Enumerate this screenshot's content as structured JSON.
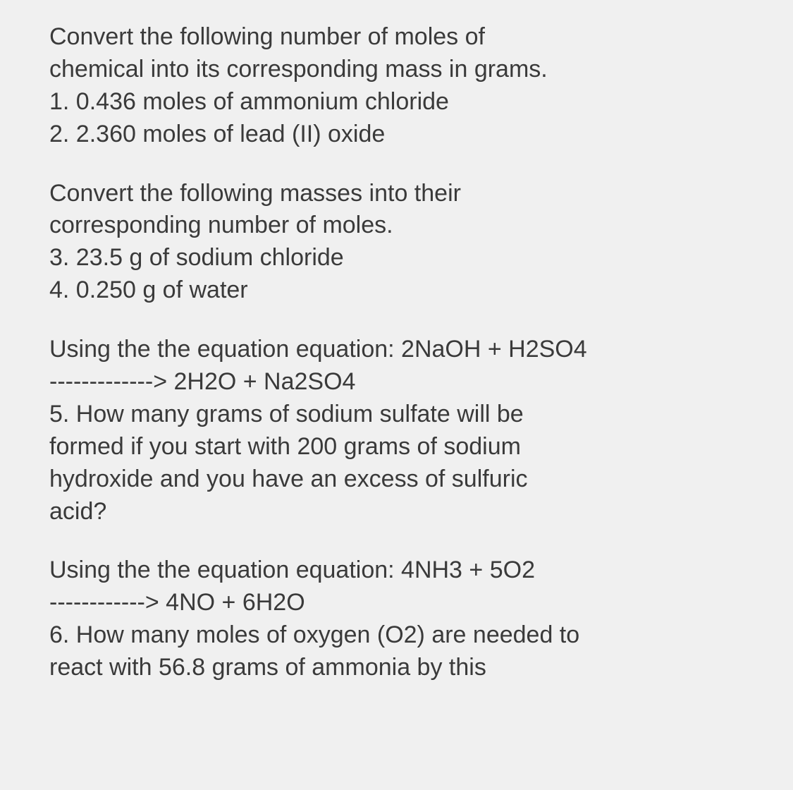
{
  "background_color": "#f0f0f0",
  "text_color": "#3a3a3a",
  "font_size": 34,
  "section1": {
    "prompt_line1": "Convert the following number of moles of",
    "prompt_line2": "chemical into its corresponding mass in grams.",
    "item1": "1. 0.436 moles of ammonium chloride",
    "item2": "2. 2.360 moles of lead (II) oxide"
  },
  "section2": {
    "prompt_line1": "Convert the following masses into their",
    "prompt_line2": "corresponding number of moles.",
    "item3": "3. 23.5 g of sodium chloride",
    "item4": "4. 0.250 g of water"
  },
  "section3": {
    "eq_line1": "Using the the equation equation: 2NaOH + H2SO4",
    "eq_line2": "-------------> 2H2O + Na2SO4",
    "q5_line1": "5. How many grams of sodium sulfate will be",
    "q5_line2": "formed if you start with 200 grams of sodium",
    "q5_line3": "hydroxide and you have an excess of sulfuric",
    "q5_line4": "acid?"
  },
  "section4": {
    "eq_line1": "Using the the equation equation: 4NH3 + 5O2",
    "eq_line2": "------------> 4NO + 6H2O",
    "q6_line1": "6. How many moles of oxygen (O2) are needed to",
    "q6_line2": "react with 56.8 grams of ammonia by this"
  }
}
